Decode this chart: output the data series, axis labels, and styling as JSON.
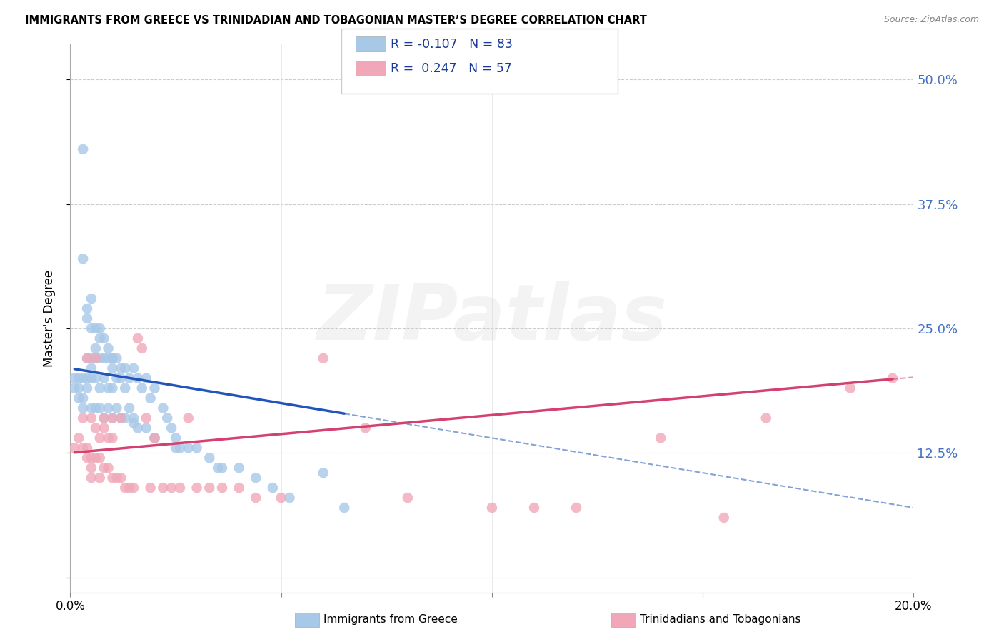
{
  "title": "IMMIGRANTS FROM GREECE VS TRINIDADIAN AND TOBAGONIAN MASTER’S DEGREE CORRELATION CHART",
  "source": "Source: ZipAtlas.com",
  "ylabel": "Master's Degree",
  "yticks": [
    0.0,
    0.125,
    0.25,
    0.375,
    0.5
  ],
  "ytick_labels": [
    "",
    "12.5%",
    "25.0%",
    "37.5%",
    "50.0%"
  ],
  "xlim": [
    0.0,
    0.2
  ],
  "ylim": [
    -0.015,
    0.535
  ],
  "blue_R": -0.107,
  "blue_N": 83,
  "pink_R": 0.247,
  "pink_N": 57,
  "blue_color": "#a8c8e8",
  "pink_color": "#f0a8b8",
  "blue_line_color": "#2255bb",
  "pink_line_color": "#d44070",
  "legend_label_blue": "Immigrants from Greece",
  "legend_label_pink": "Trinidadians and Tobagonians",
  "watermark": "ZIPatlas",
  "blue_x": [
    0.001,
    0.001,
    0.002,
    0.002,
    0.002,
    0.003,
    0.003,
    0.003,
    0.003,
    0.004,
    0.004,
    0.004,
    0.004,
    0.004,
    0.005,
    0.005,
    0.005,
    0.005,
    0.005,
    0.005,
    0.006,
    0.006,
    0.006,
    0.006,
    0.006,
    0.007,
    0.007,
    0.007,
    0.007,
    0.007,
    0.008,
    0.008,
    0.008,
    0.008,
    0.009,
    0.009,
    0.009,
    0.009,
    0.01,
    0.01,
    0.01,
    0.01,
    0.011,
    0.011,
    0.011,
    0.012,
    0.012,
    0.012,
    0.013,
    0.013,
    0.013,
    0.014,
    0.014,
    0.015,
    0.015,
    0.016,
    0.016,
    0.017,
    0.018,
    0.018,
    0.019,
    0.02,
    0.02,
    0.022,
    0.023,
    0.024,
    0.025,
    0.026,
    0.028,
    0.03,
    0.033,
    0.036,
    0.04,
    0.044,
    0.048,
    0.052,
    0.003,
    0.01,
    0.015,
    0.02,
    0.025,
    0.035,
    0.06,
    0.065
  ],
  "blue_y": [
    0.19,
    0.2,
    0.18,
    0.19,
    0.2,
    0.43,
    0.2,
    0.18,
    0.17,
    0.27,
    0.26,
    0.22,
    0.2,
    0.19,
    0.28,
    0.25,
    0.22,
    0.21,
    0.2,
    0.17,
    0.25,
    0.23,
    0.22,
    0.2,
    0.17,
    0.25,
    0.24,
    0.22,
    0.19,
    0.17,
    0.24,
    0.22,
    0.2,
    0.16,
    0.23,
    0.22,
    0.19,
    0.17,
    0.22,
    0.21,
    0.19,
    0.16,
    0.22,
    0.2,
    0.17,
    0.21,
    0.2,
    0.16,
    0.21,
    0.19,
    0.16,
    0.2,
    0.17,
    0.21,
    0.16,
    0.2,
    0.15,
    0.19,
    0.2,
    0.15,
    0.18,
    0.19,
    0.14,
    0.17,
    0.16,
    0.15,
    0.14,
    0.13,
    0.13,
    0.13,
    0.12,
    0.11,
    0.11,
    0.1,
    0.09,
    0.08,
    0.32,
    0.22,
    0.155,
    0.14,
    0.13,
    0.11,
    0.105,
    0.07
  ],
  "pink_x": [
    0.001,
    0.002,
    0.003,
    0.003,
    0.004,
    0.004,
    0.004,
    0.005,
    0.005,
    0.005,
    0.005,
    0.006,
    0.006,
    0.006,
    0.007,
    0.007,
    0.007,
    0.008,
    0.008,
    0.008,
    0.009,
    0.009,
    0.01,
    0.01,
    0.01,
    0.011,
    0.012,
    0.012,
    0.013,
    0.014,
    0.015,
    0.016,
    0.017,
    0.018,
    0.019,
    0.02,
    0.022,
    0.024,
    0.026,
    0.028,
    0.03,
    0.033,
    0.036,
    0.04,
    0.044,
    0.05,
    0.06,
    0.07,
    0.08,
    0.1,
    0.11,
    0.12,
    0.14,
    0.155,
    0.165,
    0.185,
    0.195
  ],
  "pink_y": [
    0.13,
    0.14,
    0.13,
    0.16,
    0.12,
    0.13,
    0.22,
    0.12,
    0.16,
    0.1,
    0.11,
    0.12,
    0.15,
    0.22,
    0.12,
    0.14,
    0.1,
    0.11,
    0.15,
    0.16,
    0.11,
    0.14,
    0.1,
    0.14,
    0.16,
    0.1,
    0.1,
    0.16,
    0.09,
    0.09,
    0.09,
    0.24,
    0.23,
    0.16,
    0.09,
    0.14,
    0.09,
    0.09,
    0.09,
    0.16,
    0.09,
    0.09,
    0.09,
    0.09,
    0.08,
    0.08,
    0.22,
    0.15,
    0.08,
    0.07,
    0.07,
    0.07,
    0.14,
    0.06,
    0.16,
    0.19,
    0.2
  ],
  "blue_trend_x": [
    0.001,
    0.065
  ],
  "blue_trend_y_intercept": 0.21,
  "blue_trend_slope": -0.7,
  "pink_trend_x": [
    0.001,
    0.195
  ],
  "pink_trend_y_intercept": 0.125,
  "pink_trend_slope": 0.38
}
